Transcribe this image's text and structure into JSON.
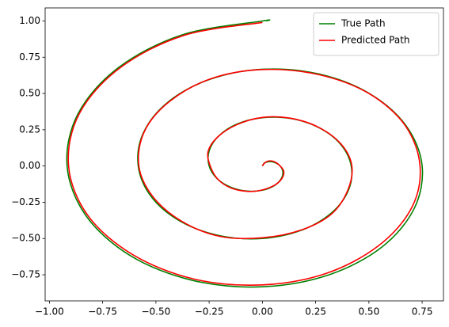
{
  "chart_data": {
    "type": "line",
    "xlim": [
      -1.02,
      0.85
    ],
    "ylim": [
      -0.93,
      1.09
    ],
    "xticks": [
      {
        "value": -1,
        "label": "−1.00"
      },
      {
        "value": -0.75,
        "label": "−0.75"
      },
      {
        "value": -0.5,
        "label": "−0.50"
      },
      {
        "value": -0.25,
        "label": "−0.25"
      },
      {
        "value": 0,
        "label": "0.00"
      },
      {
        "value": 0.25,
        "label": "0.25"
      },
      {
        "value": 0.5,
        "label": "0.50"
      },
      {
        "value": 0.75,
        "label": "0.75"
      }
    ],
    "yticks": [
      {
        "value": -0.75,
        "label": "−0.75"
      },
      {
        "value": -0.5,
        "label": "−0.50"
      },
      {
        "value": -0.25,
        "label": "−0.25"
      },
      {
        "value": 0,
        "label": "0.00"
      },
      {
        "value": 0.25,
        "label": "0.25"
      },
      {
        "value": 0.5,
        "label": "0.50"
      },
      {
        "value": 0.75,
        "label": "0.75"
      },
      {
        "value": 1,
        "label": "1.00"
      }
    ],
    "legend": "upper right",
    "series": [
      {
        "name": "True Path",
        "color": "#008000",
        "x": [
          0.02,
          0,
          -0.375,
          -0.677,
          -0.866,
          -0.917,
          -0.828,
          -0.619,
          -0.327,
          0,
          0.311,
          0.56,
          0.712,
          0.75,
          0.674,
          0.501,
          0.263,
          0,
          -0.247,
          -0.442,
          -0.558,
          -0.583,
          -0.52,
          -0.383,
          -0.199,
          0,
          0.183,
          0.324,
          0.404,
          0.417,
          0.366,
          0.265,
          0.135,
          0,
          -0.12,
          -0.206,
          -0.25,
          -0.25,
          -0.212,
          -0.147,
          -0.072,
          0,
          0.056,
          0.088,
          0.096,
          0.083,
          0.058,
          0.03,
          0.008,
          0
        ],
        "values": [
          1.0,
          1.0,
          0.905,
          0.677,
          0.359,
          0,
          -0.343,
          -0.619,
          -0.789,
          -0.833,
          -0.751,
          -0.56,
          -0.295,
          0,
          0.279,
          0.501,
          0.635,
          0.667,
          0.597,
          0.442,
          0.231,
          0,
          -0.215,
          -0.383,
          -0.481,
          -0.5,
          -0.443,
          -0.324,
          -0.167,
          0,
          0.152,
          0.265,
          0.327,
          0.333,
          0.289,
          0.206,
          0.104,
          0,
          -0.088,
          -0.147,
          -0.173,
          -0.167,
          -0.135,
          -0.088,
          -0.04,
          0,
          0.024,
          0.03,
          0.019,
          0
        ]
      },
      {
        "name": "Predicted Path",
        "color": "#ff0000",
        "x": [
          0,
          -0.37,
          -0.67,
          -0.86,
          -0.91,
          -0.82,
          -0.61,
          -0.32,
          0,
          0.3,
          0.545,
          0.7,
          0.74,
          0.67,
          0.5,
          0.265,
          0,
          -0.245,
          -0.44,
          -0.555,
          -0.58,
          -0.515,
          -0.38,
          -0.2,
          0,
          0.185,
          0.325,
          0.4,
          0.42,
          0.37,
          0.262,
          0.13,
          0,
          -0.12,
          -0.21,
          -0.255,
          -0.245,
          -0.21,
          -0.15,
          -0.07,
          0,
          0.06,
          0.092,
          0.1,
          0.08,
          0.055,
          0.03,
          0.01,
          0
        ],
        "values": [
          0.99,
          0.9,
          0.675,
          0.36,
          0,
          -0.34,
          -0.61,
          -0.78,
          -0.82,
          -0.74,
          -0.55,
          -0.29,
          0,
          0.28,
          0.5,
          0.63,
          0.665,
          0.6,
          0.44,
          0.235,
          0,
          -0.21,
          -0.38,
          -0.485,
          -0.495,
          -0.44,
          -0.33,
          -0.17,
          0,
          0.15,
          0.268,
          0.33,
          0.335,
          0.285,
          0.2,
          0.1,
          0,
          -0.09,
          -0.15,
          -0.175,
          -0.165,
          -0.13,
          -0.085,
          -0.035,
          0.005,
          0.03,
          0.035,
          0.02,
          0
        ]
      }
    ]
  }
}
